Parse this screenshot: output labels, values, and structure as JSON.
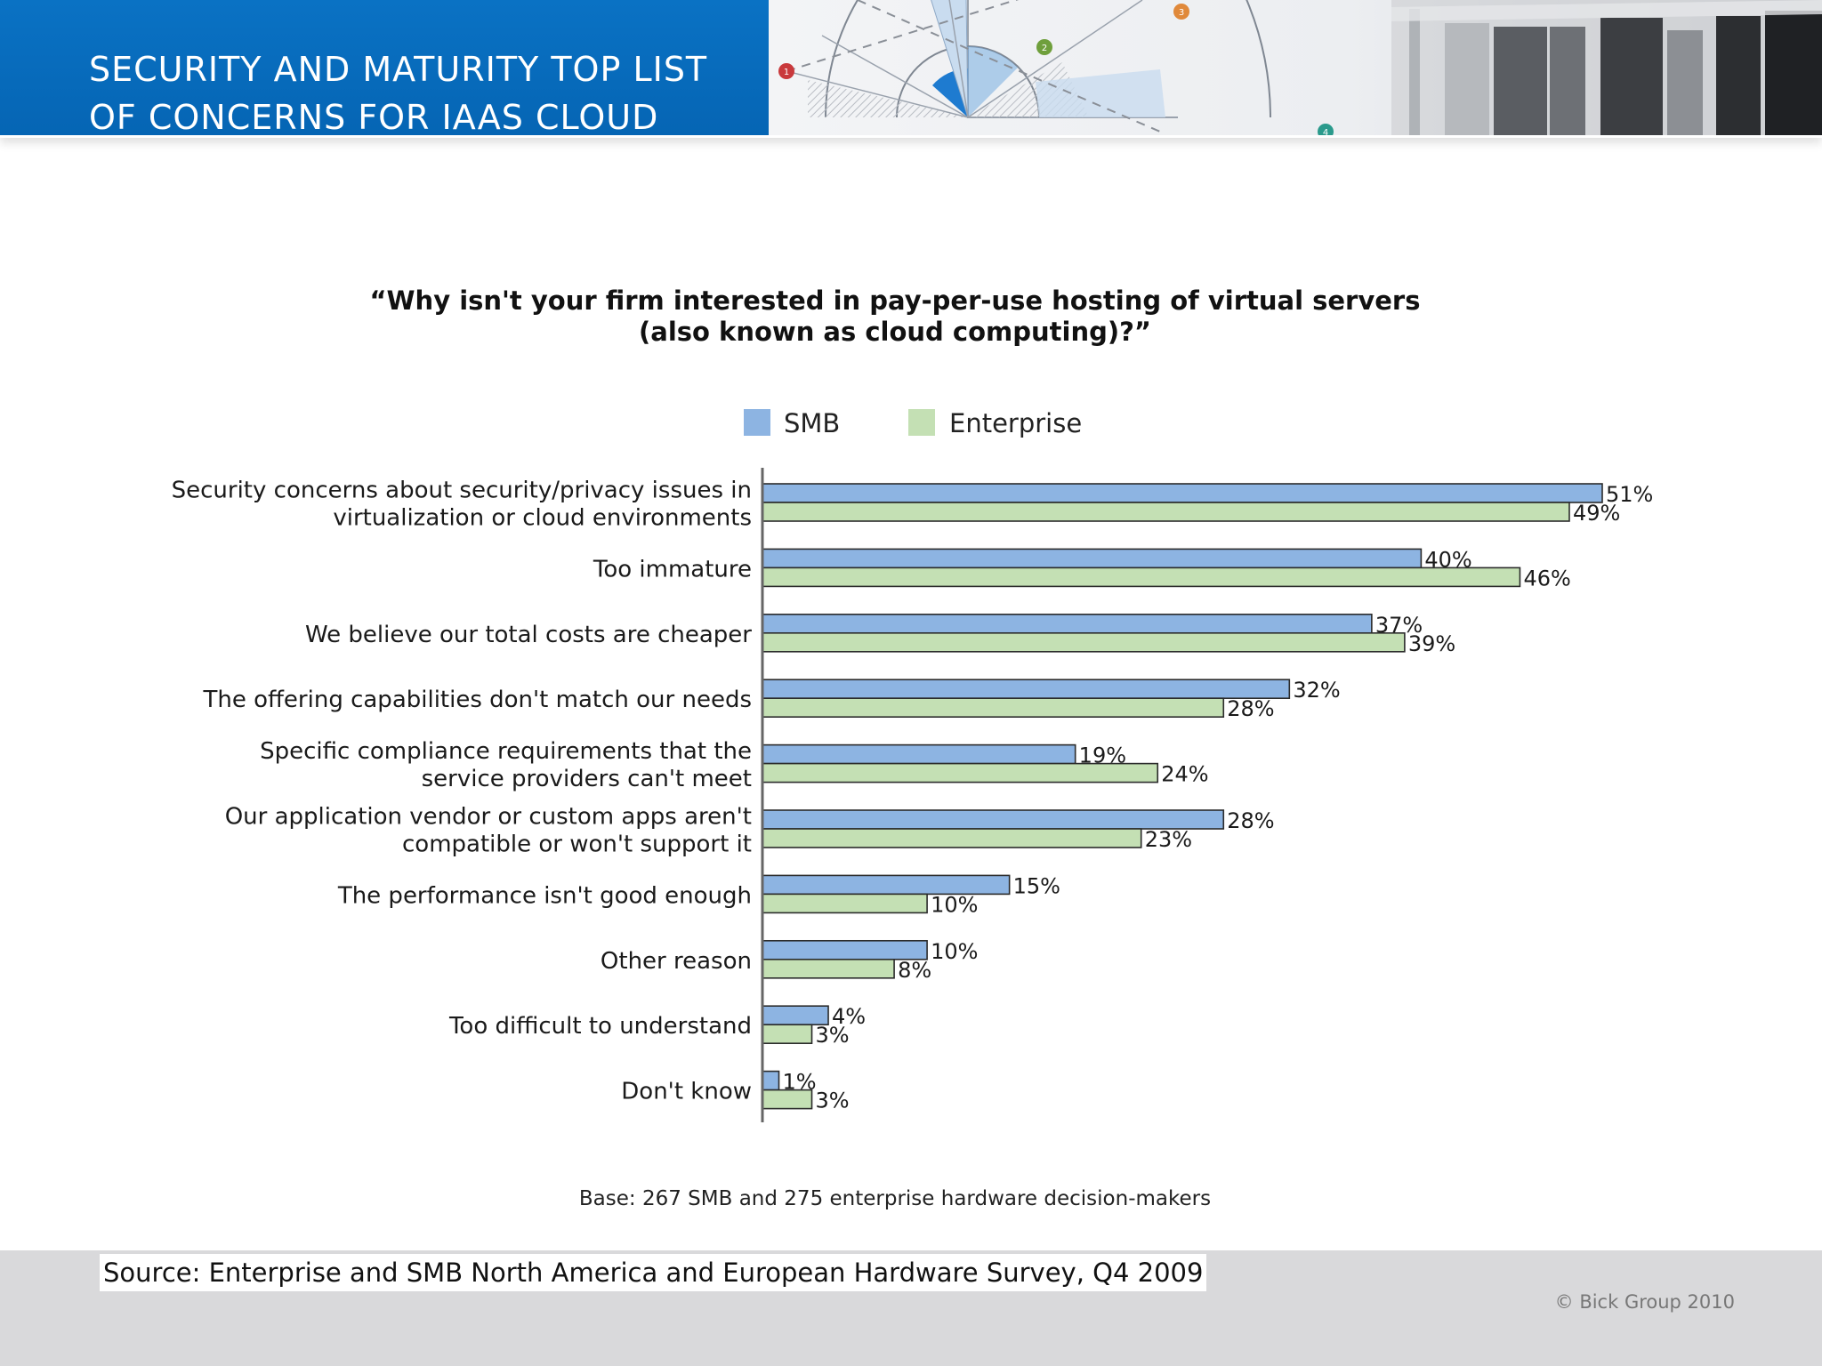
{
  "header": {
    "title_line_1": "SECURITY AND MATURITY TOP LIST",
    "title_line_2": "OF CONCERNS FOR IAAS CLOUD",
    "radar_markers": [
      "1",
      "2",
      "3",
      "4"
    ]
  },
  "colors": {
    "header_blue": "#0a6cbf",
    "smb": "#8db4e2",
    "enterprise": "#c4e0b4",
    "bar_outline": "#2b2b2b",
    "footer_gray": "#d9d9db"
  },
  "chart_data": {
    "type": "bar",
    "orientation": "horizontal",
    "title": "“Why isn't your firm interested in pay-per-use hosting of virtual servers (also known as cloud computing)?”",
    "title_lines": [
      "“Why isn't your firm interested in pay-per-use hosting of virtual servers",
      "(also known as cloud computing)?”"
    ],
    "categories": [
      "Security concerns about security/privacy issues in virtualization or cloud environments",
      "Too immature",
      "We believe our total costs are cheaper",
      "The offering capabilities don't match our needs",
      "Specific compliance requirements that the service providers can't meet",
      "Our application vendor or custom apps aren't compatible or won't support it",
      "The performance isn't good enough",
      "Other reason",
      "Too difficult to understand",
      "Don't know"
    ],
    "category_lines": [
      [
        "Security concerns about security/privacy issues in",
        "virtualization or cloud environments"
      ],
      [
        "Too immature"
      ],
      [
        "We believe our total costs are cheaper"
      ],
      [
        "The offering capabilities don't match our needs"
      ],
      [
        "Specific compliance requirements that the",
        "service providers can't meet"
      ],
      [
        "Our application vendor or custom apps aren't",
        "compatible or won't support it"
      ],
      [
        "The performance isn't good enough"
      ],
      [
        "Other reason"
      ],
      [
        "Too difficult to understand"
      ],
      [
        "Don't know"
      ]
    ],
    "series": [
      {
        "name": "SMB",
        "values": [
          51,
          40,
          37,
          32,
          19,
          28,
          15,
          10,
          4,
          1
        ]
      },
      {
        "name": "Enterprise",
        "values": [
          49,
          46,
          39,
          28,
          24,
          23,
          10,
          8,
          3,
          3
        ]
      }
    ],
    "value_format": "{v}%",
    "xlim": [
      0,
      51
    ],
    "legend": "top",
    "grid": false,
    "base_note": "Base: 267 SMB and 275 enterprise hardware decision-makers"
  },
  "footer": {
    "source": "Source: Enterprise and SMB North America and European Hardware Survey, Q4 2009",
    "copyright": "© Bick Group 2010"
  }
}
